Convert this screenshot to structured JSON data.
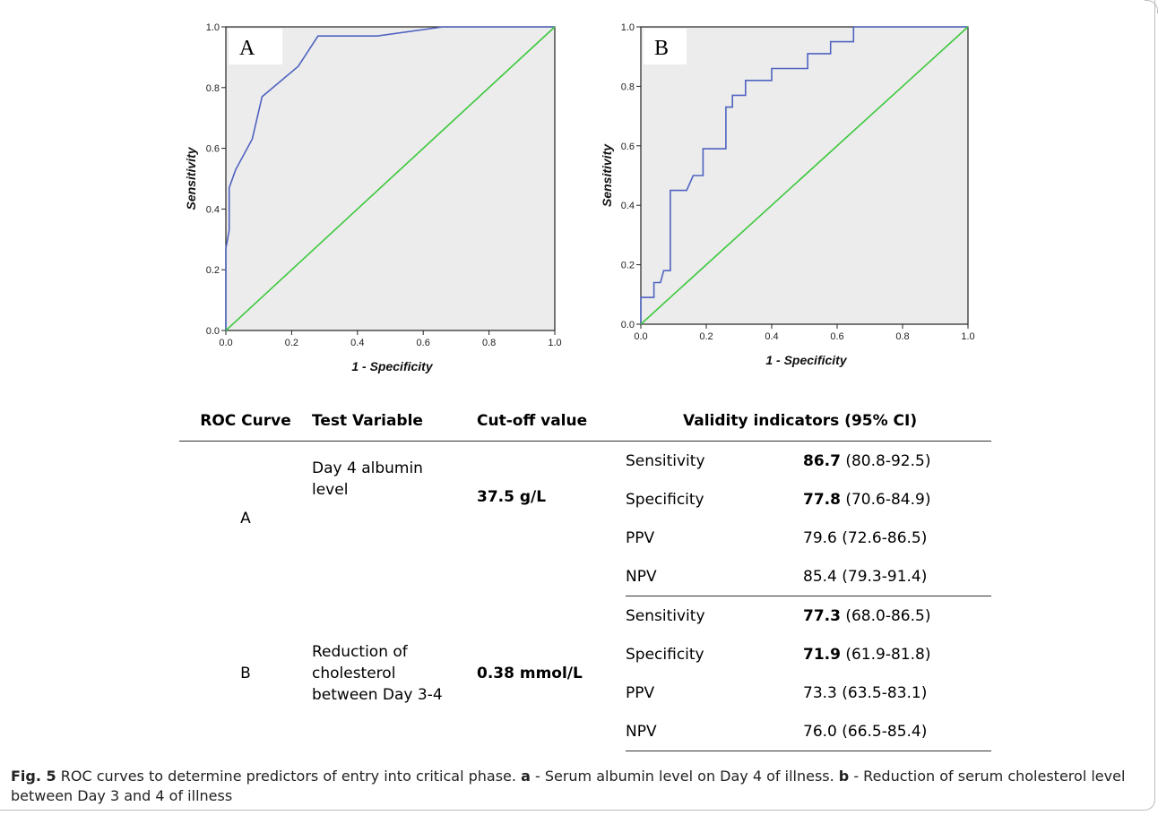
{
  "chart_data": [
    {
      "type": "line",
      "panel_label": "A",
      "xlabel": "1 - Specificity",
      "ylabel": "Sensitivity",
      "xlim": [
        0,
        1
      ],
      "ylim": [
        0,
        1
      ],
      "xticks": [
        "0.0",
        "0.2",
        "0.4",
        "0.6",
        "0.8",
        "1.0"
      ],
      "yticks": [
        "0.0",
        "0.2",
        "0.4",
        "0.6",
        "0.8",
        "1.0"
      ],
      "series": [
        {
          "color": "#4f63c0",
          "points": [
            [
              0,
              0
            ],
            [
              0,
              0.27
            ],
            [
              0.01,
              0.33
            ],
            [
              0.01,
              0.47
            ],
            [
              0.03,
              0.53
            ],
            [
              0.08,
              0.63
            ],
            [
              0.11,
              0.77
            ],
            [
              0.22,
              0.87
            ],
            [
              0.28,
              0.97
            ],
            [
              0.46,
              0.97
            ],
            [
              0.66,
              1.0
            ],
            [
              1.0,
              1.0
            ]
          ]
        },
        {
          "color": "#3cc83c",
          "points": [
            [
              0,
              0
            ],
            [
              1,
              1
            ]
          ]
        }
      ],
      "background": "#ececec"
    },
    {
      "type": "line",
      "panel_label": "B",
      "xlabel": "1 - Specificity",
      "ylabel": "Sensitivity",
      "xlim": [
        0,
        1
      ],
      "ylim": [
        0,
        1
      ],
      "xticks": [
        "0.0",
        "0.2",
        "0.4",
        "0.6",
        "0.8",
        "1.0"
      ],
      "yticks": [
        "0.0",
        "0.2",
        "0.4",
        "0.6",
        "0.8",
        "1.0"
      ],
      "series": [
        {
          "color": "#4f63c0",
          "points": [
            [
              0,
              0
            ],
            [
              0,
              0.09
            ],
            [
              0.04,
              0.09
            ],
            [
              0.04,
              0.14
            ],
            [
              0.06,
              0.14
            ],
            [
              0.07,
              0.18
            ],
            [
              0.09,
              0.18
            ],
            [
              0.09,
              0.45
            ],
            [
              0.14,
              0.45
            ],
            [
              0.16,
              0.5
            ],
            [
              0.19,
              0.5
            ],
            [
              0.19,
              0.59
            ],
            [
              0.26,
              0.59
            ],
            [
              0.26,
              0.73
            ],
            [
              0.28,
              0.73
            ],
            [
              0.28,
              0.77
            ],
            [
              0.32,
              0.77
            ],
            [
              0.32,
              0.82
            ],
            [
              0.4,
              0.82
            ],
            [
              0.4,
              0.86
            ],
            [
              0.51,
              0.86
            ],
            [
              0.51,
              0.91
            ],
            [
              0.58,
              0.91
            ],
            [
              0.58,
              0.95
            ],
            [
              0.65,
              0.95
            ],
            [
              0.65,
              1.0
            ],
            [
              1.0,
              1.0
            ]
          ]
        },
        {
          "color": "#3cc83c",
          "points": [
            [
              0,
              0
            ],
            [
              1,
              1
            ]
          ]
        }
      ],
      "background": "#ececec"
    }
  ],
  "table": {
    "headers": [
      "ROC Curve",
      "Test Variable",
      "Cut-off value",
      "Validity indicators (95% CI)"
    ],
    "groups": [
      {
        "curve": "A",
        "variable": "Day 4 albumin level",
        "cutoff": "37.5 g/L",
        "rows": [
          {
            "indicator": "Sensitivity",
            "value_bold": "86.7",
            "ci": " (80.8-92.5)"
          },
          {
            "indicator": "Specificity",
            "value_bold": "77.8",
            "ci": " (70.6-84.9)"
          },
          {
            "indicator": "PPV",
            "value_bold": "",
            "ci": "79.6 (72.6-86.5)"
          },
          {
            "indicator": "NPV",
            "value_bold": "",
            "ci": "85.4 (79.3-91.4)"
          }
        ]
      },
      {
        "curve": "B",
        "variable": "Reduction of cholesterol between Day 3-4",
        "cutoff": "0.38 mmol/L",
        "rows": [
          {
            "indicator": "Sensitivity",
            "value_bold": "77.3",
            "ci": " (68.0-86.5)"
          },
          {
            "indicator": "Specificity",
            "value_bold": "71.9",
            "ci": " (61.9-81.8)"
          },
          {
            "indicator": "PPV",
            "value_bold": "",
            "ci": "73.3 (63.5-83.1)"
          },
          {
            "indicator": "NPV",
            "value_bold": "",
            "ci": "76.0 (66.5-85.4)"
          }
        ]
      }
    ]
  },
  "caption": {
    "fig_label": "Fig. 5",
    "text1": " ROC curves to determine predictors of entry into critical phase. ",
    "a_label": "a",
    "text2": " - Serum albumin level on Day 4 of illness. ",
    "b_label": "b",
    "text3": " - Reduction of serum cholesterol level between Day 3 and 4 of illness"
  }
}
